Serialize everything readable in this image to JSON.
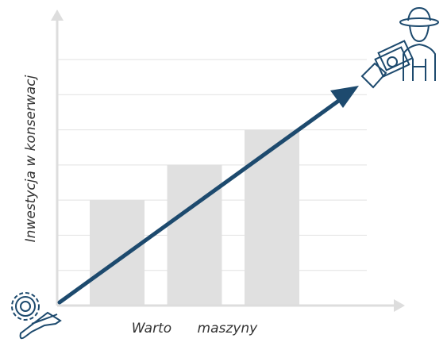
{
  "chart_data": {
    "type": "bar",
    "categories": [
      null,
      null,
      null
    ],
    "values": [
      3,
      4,
      5
    ],
    "color": "#e0e0e0",
    "ylim": [
      0,
      7
    ],
    "yticks": [
      1,
      2,
      3,
      4,
      5,
      6,
      7
    ],
    "grid": true,
    "x_label": "Warto      maszyny",
    "y_label": "Inwestycja w konserwacj"
  }
}
